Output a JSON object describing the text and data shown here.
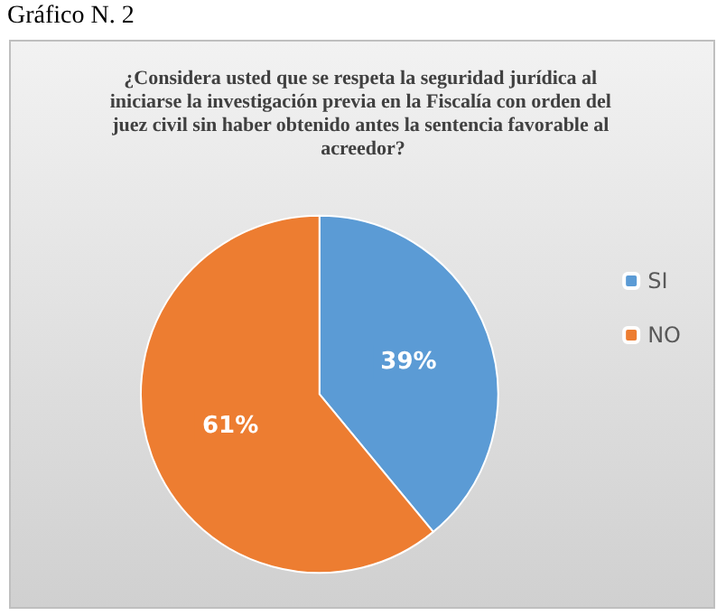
{
  "chart_data": {
    "type": "pie",
    "title": "¿Considera usted que se respeta la seguridad jurídica al iniciarse la investigación previa en la Fiscalía con orden del juez civil sin haber obtenido antes la sentencia favorable al acreedor?",
    "annotations": [
      "Gráfico N. 2"
    ],
    "categories": [
      "SI",
      "NO"
    ],
    "values": [
      39,
      61
    ],
    "colors": [
      "#5b9bd5",
      "#ed7d31"
    ],
    "value_labels": [
      "39%",
      "61%"
    ],
    "legend": "right"
  }
}
